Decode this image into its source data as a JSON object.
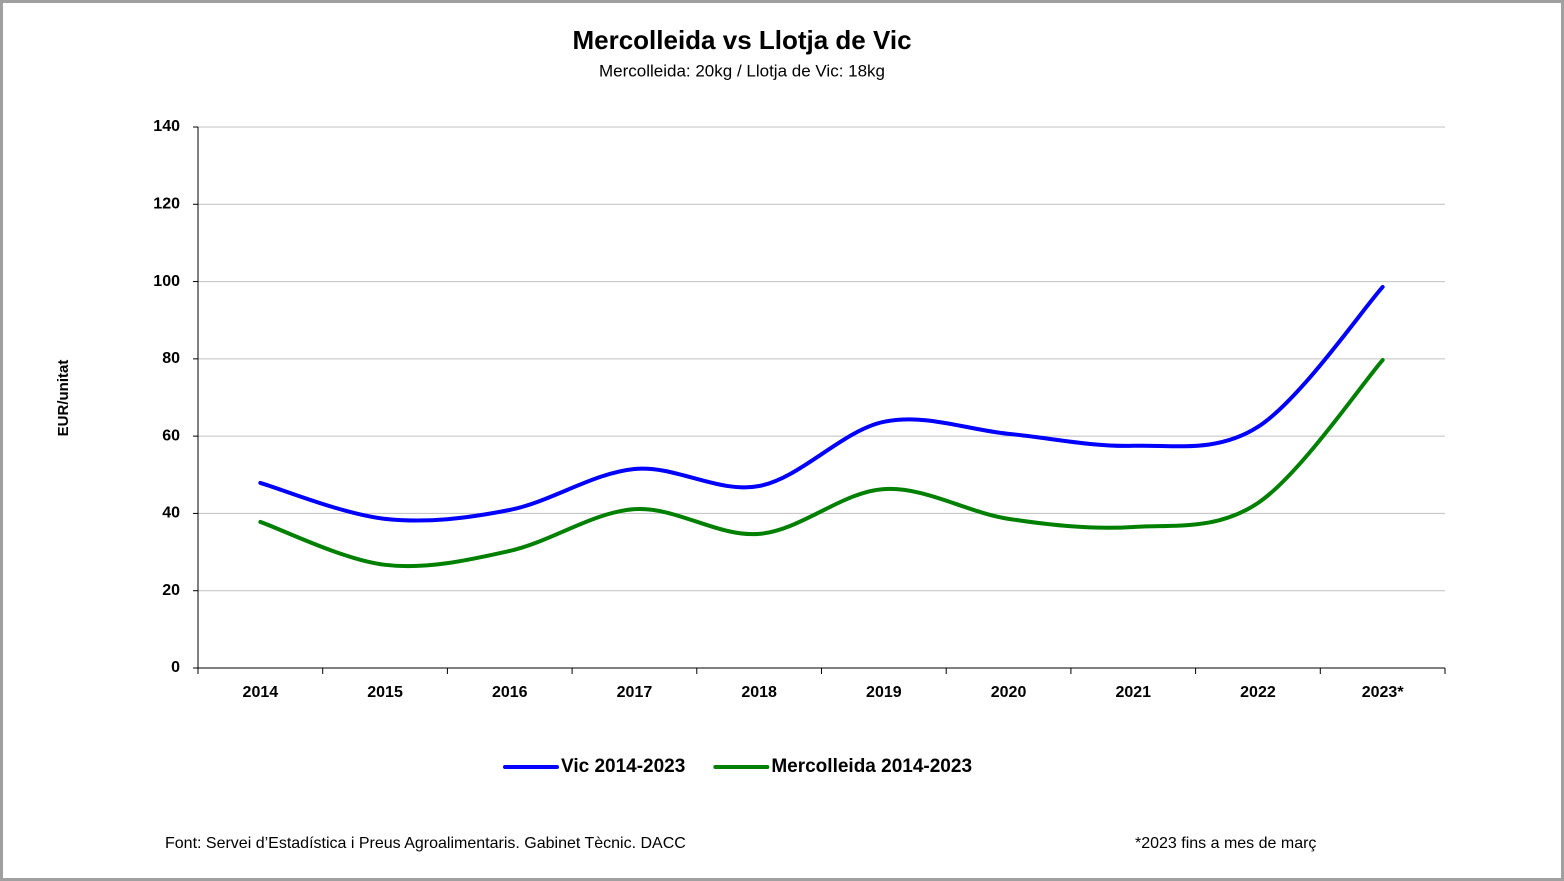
{
  "chart_data": {
    "type": "line",
    "title": "Mercolleida vs Llotja de Vic",
    "subtitle": "Mercolleida: 20kg / Llotja de Vic: 18kg",
    "y_label": "EUR/unitat",
    "categories": [
      "2014",
      "2015",
      "2016",
      "2017",
      "2018",
      "2019",
      "2020",
      "2021",
      "2022",
      "2023*"
    ],
    "series": [
      {
        "name": "Vic 2014-2023",
        "color": "#0000ff",
        "values": [
          47.9,
          38.6,
          40.9,
          51.5,
          47.1,
          63.7,
          60.6,
          57.5,
          62.4,
          98.6
        ]
      },
      {
        "name": "Mercolleida 2014-2023",
        "color": "#008000",
        "values": [
          37.8,
          26.7,
          30.3,
          41.1,
          34.7,
          46.3,
          38.6,
          36.5,
          42.7,
          79.7
        ]
      }
    ],
    "ylim": [
      0,
      140
    ],
    "yticks": [
      0,
      20,
      40,
      60,
      80,
      100,
      120,
      140
    ],
    "grid": true,
    "smooth": true,
    "legend": "bottom",
    "source": "Font: Servei d’Estadística i Preus Agroalimentaris. Gabinet Tècnic. DACC",
    "footnote": "*2023 fins a mes de març"
  }
}
